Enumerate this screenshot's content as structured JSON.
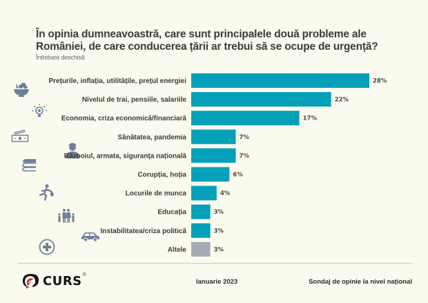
{
  "header": {
    "title_line1": "În opinia dumneavoastră, care sunt principalele două probleme ale",
    "title_line2": "României, de care conducerea țării ar trebui să se ocupe de urgență?",
    "subtitle": "Întrebare deschisă"
  },
  "colors": {
    "bar_primary": "#06a0b8",
    "bar_other": "#a4abb6",
    "icon": "#6f7f9a",
    "background": "#fbfaee"
  },
  "chart_data": {
    "type": "bar",
    "orientation": "horizontal",
    "title": "În opinia dumneavoastră, care sunt principalele două probleme ale României, de care conducerea țării ar trebui să se ocupe de urgență?",
    "subtitle": "Întrebare deschisă",
    "xlabel": "",
    "ylabel": "",
    "unit": "%",
    "grid": false,
    "categories": [
      "Prețurile, inflația, utilitățile, prețul energiei",
      "Nivelul de trai, pensiile, salariile",
      "Economia, criza economică/financiară",
      "Sănătatea, pandemia",
      "Războiul, armata, siguranța națională",
      "Corupția, hoția",
      "Locurile de munca",
      "Educația",
      "Instabilitatea/criza politică",
      "Altele"
    ],
    "values": [
      28,
      22,
      17,
      7,
      7,
      6,
      4,
      3,
      3,
      3
    ],
    "value_labels": [
      "28%",
      "22%",
      "17%",
      "7%",
      "7%",
      "6%",
      "4%",
      "3%",
      "3%",
      "3%"
    ],
    "highlight_other_index": 9,
    "xlim": [
      0,
      28
    ]
  },
  "decorative_icons": [
    "fruit-bowl-icon",
    "lightbulb-icon",
    "money-icon",
    "soldier-icon",
    "books-icon",
    "thief-icon",
    "family-icon",
    "car-icon",
    "medical-cross-icon"
  ],
  "footer": {
    "logo_text": "CURS",
    "logo_registered": "®",
    "date": "Ianuarie 2023",
    "survey_label": "Sondaj de opinie la nivel național"
  }
}
